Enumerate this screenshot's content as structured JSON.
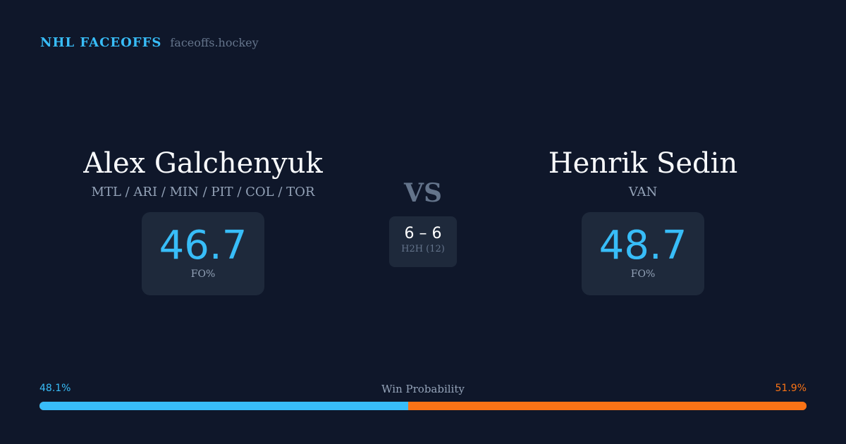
{
  "brand": {
    "title": "NHL FACEOFFS",
    "url": "faceoffs.hockey"
  },
  "player1": {
    "name": "Alex Galchenyuk",
    "teams": "MTL / ARI / MIN / PIT / COL / TOR",
    "fo_pct": "46.7",
    "fo_label": "FO%"
  },
  "player2": {
    "name": "Henrik Sedin",
    "teams": "VAN",
    "fo_pct": "48.7",
    "fo_label": "FO%"
  },
  "vs": "VS",
  "h2h": {
    "score": "6 – 6",
    "label": "H2H (12)"
  },
  "win_probability": {
    "label": "Win Probability",
    "p1": "48.1%",
    "p2": "51.9%",
    "p1_value": 48.1,
    "colors": {
      "p1": "#38bdf8",
      "p2": "#f97316"
    }
  }
}
